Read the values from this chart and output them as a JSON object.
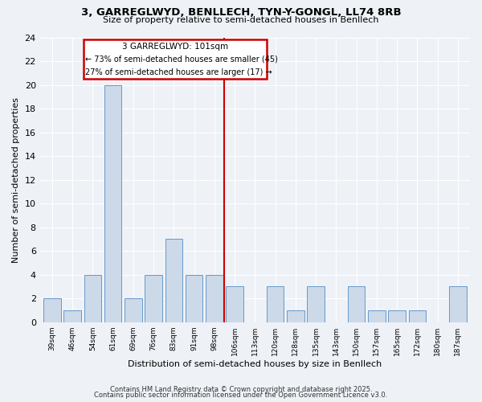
{
  "title1": "3, GARREGLWYD, BENLLECH, TYN-Y-GONGL, LL74 8RB",
  "title2": "Size of property relative to semi-detached houses in Benllech",
  "xlabel": "Distribution of semi-detached houses by size in Benllech",
  "ylabel": "Number of semi-detached properties",
  "categories": [
    "39sqm",
    "46sqm",
    "54sqm",
    "61sqm",
    "69sqm",
    "76sqm",
    "83sqm",
    "91sqm",
    "98sqm",
    "106sqm",
    "113sqm",
    "120sqm",
    "128sqm",
    "135sqm",
    "143sqm",
    "150sqm",
    "157sqm",
    "165sqm",
    "172sqm",
    "180sqm",
    "187sqm"
  ],
  "values": [
    2,
    1,
    4,
    20,
    2,
    4,
    7,
    4,
    4,
    3,
    0,
    3,
    1,
    3,
    0,
    3,
    1,
    1,
    1,
    0,
    3
  ],
  "bar_color": "#ccd9e8",
  "bar_edge_color": "#6699cc",
  "vline_x_idx": 8,
  "vline_color": "#cc0000",
  "annotation_title": "3 GARREGLWYD: 101sqm",
  "annotation_line1": "← 73% of semi-detached houses are smaller (45)",
  "annotation_line2": "27% of semi-detached houses are larger (17) →",
  "annotation_box_color": "#cc0000",
  "annotation_bg": "#ffffff",
  "ylim": [
    0,
    24
  ],
  "yticks": [
    0,
    2,
    4,
    6,
    8,
    10,
    12,
    14,
    16,
    18,
    20,
    22,
    24
  ],
  "footer1": "Contains HM Land Registry data © Crown copyright and database right 2025.",
  "footer2": "Contains public sector information licensed under the Open Government Licence v3.0.",
  "bg_color": "#eef2f7"
}
